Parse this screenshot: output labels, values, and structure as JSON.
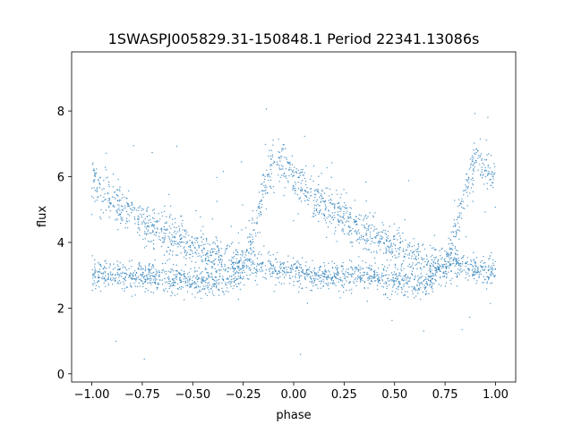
{
  "chart_data": {
    "type": "scatter",
    "title": "1SWASPJ005829.31-150848.1 Period 22341.13086s",
    "xlabel": "phase",
    "ylabel": "flux",
    "xlim": [
      -1.1,
      1.1
    ],
    "ylim": [
      -0.25,
      9.8
    ],
    "xticks": [
      -1.0,
      -0.75,
      -0.5,
      -0.25,
      0.0,
      0.25,
      0.5,
      0.75,
      1.0
    ],
    "xtick_labels": [
      "−1.00",
      "−0.75",
      "−0.50",
      "−0.25",
      "0.00",
      "0.25",
      "0.50",
      "0.75",
      "1.00"
    ],
    "yticks": [
      0,
      2,
      4,
      6,
      8
    ],
    "ytick_labels": [
      "0",
      "2",
      "4",
      "6",
      "8"
    ],
    "marker_color": "#1f77b4",
    "grid": false,
    "legend": "none",
    "series": [
      {
        "description_of_branch": "",
        "x": [
          -1.0,
          -0.95,
          -0.9,
          -0.85,
          -0.8,
          -0.75,
          -0.7,
          -0.65,
          -0.6,
          -0.55,
          -0.5,
          -0.45,
          -0.4,
          -0.35,
          -0.3,
          -0.25,
          -0.2,
          -0.15,
          -0.1,
          -0.05,
          0.0,
          0.05,
          0.1,
          0.15,
          0.2,
          0.25,
          0.3,
          0.35,
          0.4,
          0.45,
          0.5,
          0.55,
          0.6,
          0.65,
          0.7,
          0.75,
          0.8,
          0.85,
          0.9,
          0.95,
          1.0
        ],
        "y": [
          5.9,
          5.6,
          5.35,
          5.1,
          4.9,
          4.7,
          4.5,
          4.3,
          4.15,
          4.0,
          3.85,
          3.7,
          3.55,
          3.45,
          3.35,
          3.3,
          4.2,
          5.6,
          6.5,
          6.3,
          6.0,
          5.7,
          5.4,
          5.15,
          4.9,
          4.7,
          4.5,
          4.3,
          4.15,
          4.0,
          3.85,
          3.7,
          3.55,
          3.45,
          3.35,
          3.3,
          4.2,
          5.6,
          6.5,
          6.3,
          6.0
        ]
      },
      {
        "description_of_branch": "",
        "x": [
          -1.0,
          -0.9,
          -0.8,
          -0.7,
          -0.6,
          -0.5,
          -0.45,
          -0.4,
          -0.35,
          -0.3,
          -0.25,
          -0.2,
          -0.1,
          0.0,
          0.1,
          0.2,
          0.3,
          0.4,
          0.5,
          0.55,
          0.6,
          0.65,
          0.7,
          0.75,
          0.8,
          0.9,
          1.0
        ],
        "y": [
          3.0,
          3.0,
          2.95,
          2.95,
          2.9,
          2.85,
          2.8,
          2.75,
          2.8,
          3.0,
          3.3,
          3.3,
          3.2,
          3.1,
          3.0,
          3.0,
          2.95,
          2.9,
          2.85,
          2.8,
          2.75,
          2.8,
          3.0,
          3.3,
          3.3,
          3.2,
          3.1
        ]
      }
    ]
  }
}
